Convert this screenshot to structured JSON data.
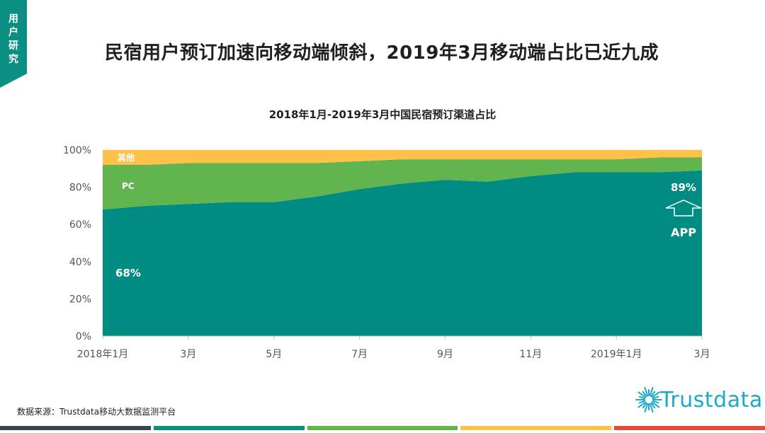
{
  "corner_tab": {
    "label": "用户研究"
  },
  "page_title": "民宿用户预订加速向移动端倾斜，2019年3月移动端占比已近九成",
  "source": "数据来源：Trustdata移动大数据监测平台",
  "logo": {
    "text": "Trustdata",
    "icon": "sunburst-logo-icon"
  },
  "colors": {
    "app": "#008c82",
    "pc": "#62b44f",
    "other": "#ffc14a",
    "accent": "#0b8f83",
    "footer": [
      "#3a4654",
      "#0b8f83",
      "#62b44f",
      "#ffc14a",
      "#e54b3c"
    ]
  },
  "chart_data": {
    "type": "area",
    "title": "2018年1月-2019年3月中国民宿预订渠道占比",
    "x": [
      "2018年1月",
      "2月",
      "3月",
      "4月",
      "5月",
      "6月",
      "7月",
      "8月",
      "9月",
      "10月",
      "11月",
      "12月",
      "2019年1月",
      "2月",
      "3月"
    ],
    "x_tick_labels": [
      "2018年1月",
      "",
      "3月",
      "",
      "5月",
      "",
      "7月",
      "",
      "9月",
      "",
      "11月",
      "",
      "2019年1月",
      "",
      "3月"
    ],
    "y_ticks": [
      "0%",
      "20%",
      "40%",
      "60%",
      "80%",
      "100%"
    ],
    "ylim": [
      0,
      100
    ],
    "stacked": true,
    "series": [
      {
        "name": "APP",
        "values": [
          68,
          70,
          71,
          72,
          72,
          75,
          79,
          82,
          84,
          83,
          86,
          88,
          88,
          88,
          89
        ]
      },
      {
        "name": "PC",
        "values": [
          24,
          22,
          22,
          21,
          21,
          18,
          15,
          13,
          11,
          12,
          9,
          7,
          7,
          8,
          7
        ]
      },
      {
        "name": "其他",
        "values": [
          8,
          8,
          7,
          7,
          7,
          7,
          6,
          5,
          5,
          5,
          5,
          5,
          5,
          4,
          4
        ]
      }
    ],
    "annotations": {
      "start_app": "68%",
      "end_app": "89%",
      "pc_label": "PC",
      "other_label": "其他",
      "app_label": "APP"
    }
  }
}
